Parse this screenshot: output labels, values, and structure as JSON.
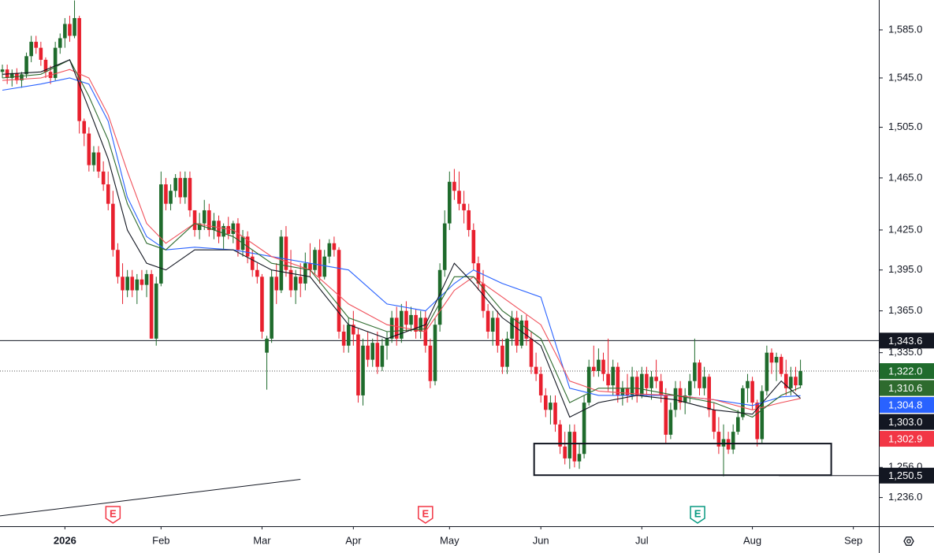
{
  "chart_data": {
    "type": "candlestick",
    "up_color": "#1f6b2c",
    "down_color": "#e8202e",
    "xlim": [
      -0.5,
      182.3
    ],
    "xticks": [
      {
        "value": 13,
        "label": "2026"
      },
      {
        "value": 33,
        "label": "Feb"
      },
      {
        "value": 54,
        "label": "Mar"
      },
      {
        "value": 73,
        "label": "Apr"
      },
      {
        "value": 93,
        "label": "May"
      },
      {
        "value": 112,
        "label": "Jun"
      },
      {
        "value": 133,
        "label": "Jul"
      },
      {
        "value": 156,
        "label": "Aug"
      },
      {
        "value": 177,
        "label": "Sep"
      }
    ],
    "log_scale": true,
    "grid": false,
    "ylim": [
      1217.3,
      1610.4
    ],
    "yticks": [
      {
        "value": 1236,
        "label": "1,236.0"
      },
      {
        "value": 1256,
        "label": "1,256.0"
      },
      {
        "value": 1335,
        "label": "1,335.0"
      },
      {
        "value": 1365,
        "label": "1,365.0"
      },
      {
        "value": 1395,
        "label": "1,395.0"
      },
      {
        "value": 1425,
        "label": "1,425.0"
      },
      {
        "value": 1465,
        "label": "1,465.0"
      },
      {
        "value": 1505,
        "label": "1,505.0"
      },
      {
        "value": 1545,
        "label": "1,545.0"
      },
      {
        "value": 1585,
        "label": "1,585.0"
      }
    ],
    "ohlc": [
      [
        1550,
        1556,
        1545,
        1552
      ],
      [
        1552,
        1556,
        1540,
        1545
      ],
      [
        1545,
        1552,
        1538,
        1549
      ],
      [
        1549,
        1553,
        1540,
        1543
      ],
      [
        1543,
        1550,
        1537,
        1548
      ],
      [
        1548,
        1566,
        1545,
        1563
      ],
      [
        1563,
        1580,
        1558,
        1575
      ],
      [
        1575,
        1580,
        1565,
        1570
      ],
      [
        1570,
        1575,
        1555,
        1560
      ],
      [
        1560,
        1562,
        1545,
        1550
      ],
      [
        1550,
        1555,
        1540,
        1545
      ],
      [
        1545,
        1575,
        1543,
        1570
      ],
      [
        1570,
        1582,
        1565,
        1578
      ],
      [
        1578,
        1595,
        1570,
        1590
      ],
      [
        1590,
        1597,
        1575,
        1580
      ],
      [
        1580,
        1610,
        1578,
        1595
      ],
      [
        1595,
        1597,
        1500,
        1510
      ],
      [
        1510,
        1512,
        1490,
        1500
      ],
      [
        1500,
        1505,
        1470,
        1475
      ],
      [
        1475,
        1490,
        1470,
        1485
      ],
      [
        1485,
        1490,
        1465,
        1470
      ],
      [
        1470,
        1478,
        1455,
        1460
      ],
      [
        1460,
        1470,
        1440,
        1445
      ],
      [
        1445,
        1455,
        1405,
        1410
      ],
      [
        1410,
        1415,
        1385,
        1390
      ],
      [
        1390,
        1400,
        1370,
        1380
      ],
      [
        1380,
        1395,
        1375,
        1390
      ],
      [
        1390,
        1395,
        1375,
        1380
      ],
      [
        1380,
        1392,
        1370,
        1388
      ],
      [
        1388,
        1395,
        1380,
        1384
      ],
      [
        1384,
        1395,
        1375,
        1392
      ],
      [
        1392,
        1395,
        1345,
        1345
      ],
      [
        1345,
        1390,
        1340,
        1385
      ],
      [
        1385,
        1470,
        1383,
        1460
      ],
      [
        1460,
        1465,
        1440,
        1445
      ],
      [
        1445,
        1460,
        1440,
        1455
      ],
      [
        1455,
        1468,
        1450,
        1465
      ],
      [
        1465,
        1470,
        1445,
        1450
      ],
      [
        1450,
        1470,
        1445,
        1465
      ],
      [
        1465,
        1470,
        1435,
        1440
      ],
      [
        1440,
        1440,
        1420,
        1425
      ],
      [
        1425,
        1438,
        1418,
        1430
      ],
      [
        1430,
        1448,
        1425,
        1440
      ],
      [
        1440,
        1445,
        1420,
        1425
      ],
      [
        1425,
        1438,
        1418,
        1432
      ],
      [
        1432,
        1436,
        1415,
        1420
      ],
      [
        1420,
        1430,
        1410,
        1428
      ],
      [
        1428,
        1435,
        1418,
        1422
      ],
      [
        1422,
        1432,
        1415,
        1430
      ],
      [
        1430,
        1434,
        1405,
        1410
      ],
      [
        1410,
        1425,
        1405,
        1420
      ],
      [
        1420,
        1424,
        1400,
        1405
      ],
      [
        1405,
        1410,
        1390,
        1395
      ],
      [
        1395,
        1400,
        1385,
        1390
      ],
      [
        1390,
        1392,
        1345,
        1350
      ],
      [
        1335,
        1347,
        1309,
        1345
      ],
      [
        1345,
        1395,
        1342,
        1390
      ],
      [
        1390,
        1400,
        1370,
        1380
      ],
      [
        1380,
        1425,
        1378,
        1420
      ],
      [
        1420,
        1428,
        1390,
        1395
      ],
      [
        1395,
        1410,
        1375,
        1380
      ],
      [
        1380,
        1395,
        1370,
        1390
      ],
      [
        1390,
        1400,
        1375,
        1385
      ],
      [
        1385,
        1408,
        1380,
        1400
      ],
      [
        1400,
        1415,
        1390,
        1395
      ],
      [
        1395,
        1412,
        1392,
        1410
      ],
      [
        1410,
        1418,
        1385,
        1390
      ],
      [
        1390,
        1410,
        1388,
        1405
      ],
      [
        1405,
        1418,
        1400,
        1415
      ],
      [
        1415,
        1420,
        1405,
        1410
      ],
      [
        1410,
        1412,
        1345,
        1350
      ],
      [
        1350,
        1355,
        1335,
        1340
      ],
      [
        1340,
        1360,
        1335,
        1355
      ],
      [
        1355,
        1365,
        1340,
        1348
      ],
      [
        1348,
        1352,
        1300,
        1305
      ],
      [
        1305,
        1345,
        1298,
        1340
      ],
      [
        1340,
        1350,
        1325,
        1330
      ],
      [
        1330,
        1345,
        1325,
        1342
      ],
      [
        1342,
        1350,
        1320,
        1325
      ],
      [
        1325,
        1345,
        1322,
        1340
      ],
      [
        1340,
        1350,
        1330,
        1345
      ],
      [
        1345,
        1365,
        1342,
        1360
      ],
      [
        1360,
        1368,
        1340,
        1345
      ],
      [
        1345,
        1370,
        1342,
        1365
      ],
      [
        1365,
        1372,
        1350,
        1355
      ],
      [
        1355,
        1368,
        1350,
        1362
      ],
      [
        1362,
        1366,
        1345,
        1350
      ],
      [
        1350,
        1365,
        1345,
        1360
      ],
      [
        1360,
        1365,
        1335,
        1340
      ],
      [
        1340,
        1345,
        1310,
        1315
      ],
      [
        1315,
        1360,
        1312,
        1355
      ],
      [
        1355,
        1400,
        1350,
        1395
      ],
      [
        1395,
        1440,
        1390,
        1430
      ],
      [
        1430,
        1470,
        1425,
        1462
      ],
      [
        1462,
        1472,
        1448,
        1455
      ],
      [
        1455,
        1470,
        1440,
        1445
      ],
      [
        1445,
        1455,
        1430,
        1440
      ],
      [
        1440,
        1445,
        1420,
        1425
      ],
      [
        1425,
        1430,
        1395,
        1400
      ],
      [
        1400,
        1405,
        1380,
        1385
      ],
      [
        1385,
        1395,
        1360,
        1365
      ],
      [
        1365,
        1370,
        1345,
        1350
      ],
      [
        1350,
        1365,
        1340,
        1360
      ],
      [
        1360,
        1365,
        1335,
        1340
      ],
      [
        1340,
        1345,
        1320,
        1325
      ],
      [
        1325,
        1350,
        1320,
        1345
      ],
      [
        1345,
        1365,
        1340,
        1360
      ],
      [
        1360,
        1365,
        1335,
        1340
      ],
      [
        1340,
        1362,
        1338,
        1358
      ],
      [
        1358,
        1362,
        1340,
        1345
      ],
      [
        1345,
        1350,
        1320,
        1325
      ],
      [
        1325,
        1335,
        1315,
        1320
      ],
      [
        1320,
        1325,
        1300,
        1305
      ],
      [
        1305,
        1310,
        1290,
        1295
      ],
      [
        1295,
        1305,
        1285,
        1300
      ],
      [
        1300,
        1305,
        1280,
        1285
      ],
      [
        1285,
        1288,
        1265,
        1270
      ],
      [
        1270,
        1280,
        1258,
        1262
      ],
      [
        1262,
        1285,
        1255,
        1280
      ],
      [
        1280,
        1285,
        1256,
        1260
      ],
      [
        1260,
        1272,
        1255,
        1265
      ],
      [
        1265,
        1305,
        1262,
        1300
      ],
      [
        1300,
        1330,
        1298,
        1325
      ],
      [
        1325,
        1340,
        1318,
        1322
      ],
      [
        1322,
        1338,
        1318,
        1330
      ],
      [
        1330,
        1335,
        1315,
        1320
      ],
      [
        1320,
        1345,
        1308,
        1312
      ],
      [
        1312,
        1330,
        1305,
        1325
      ],
      [
        1325,
        1328,
        1300,
        1305
      ],
      [
        1305,
        1315,
        1298,
        1310
      ],
      [
        1310,
        1320,
        1300,
        1305
      ],
      [
        1305,
        1325,
        1302,
        1318
      ],
      [
        1318,
        1322,
        1300,
        1305
      ],
      [
        1305,
        1325,
        1303,
        1320
      ],
      [
        1320,
        1325,
        1305,
        1310
      ],
      [
        1310,
        1322,
        1302,
        1318
      ],
      [
        1318,
        1330,
        1310,
        1315
      ],
      [
        1315,
        1320,
        1300,
        1305
      ],
      [
        1305,
        1310,
        1272,
        1278
      ],
      [
        1278,
        1300,
        1275,
        1295
      ],
      [
        1295,
        1315,
        1290,
        1310
      ],
      [
        1310,
        1315,
        1295,
        1300
      ],
      [
        1300,
        1310,
        1292,
        1305
      ],
      [
        1305,
        1320,
        1300,
        1315
      ],
      [
        1315,
        1345,
        1310,
        1328
      ],
      [
        1328,
        1330,
        1305,
        1310
      ],
      [
        1310,
        1325,
        1305,
        1318
      ],
      [
        1318,
        1320,
        1290,
        1295
      ],
      [
        1295,
        1300,
        1275,
        1280
      ],
      [
        1280,
        1290,
        1265,
        1270
      ],
      [
        1270,
        1285,
        1250,
        1275
      ],
      [
        1275,
        1280,
        1265,
        1268
      ],
      [
        1268,
        1285,
        1265,
        1280
      ],
      [
        1280,
        1295,
        1278,
        1290
      ],
      [
        1290,
        1312,
        1288,
        1310
      ],
      [
        1310,
        1320,
        1300,
        1315
      ],
      [
        1315,
        1318,
        1295,
        1300
      ],
      [
        1300,
        1302,
        1270,
        1275
      ],
      [
        1275,
        1312,
        1272,
        1308
      ],
      [
        1308,
        1340,
        1305,
        1335
      ],
      [
        1335,
        1338,
        1320,
        1328
      ],
      [
        1328,
        1335,
        1315,
        1332
      ],
      [
        1332,
        1334,
        1318,
        1320
      ],
      [
        1320,
        1330,
        1305,
        1310
      ],
      [
        1310,
        1325,
        1305,
        1318
      ],
      [
        1318,
        1325,
        1308,
        1312
      ],
      [
        1312,
        1330,
        1310,
        1322
      ]
    ],
    "lines": [
      {
        "color": "#2962ff",
        "x": [
          0,
          8,
          14,
          18,
          22,
          26,
          30,
          34,
          40,
          48,
          56,
          64,
          72,
          80,
          88,
          94,
          98,
          104,
          112,
          118,
          124,
          132,
          140,
          148,
          156,
          162,
          166
        ],
        "values": [
          1535,
          1540,
          1545,
          1540,
          1510,
          1450,
          1420,
          1410,
          1412,
          1410,
          1405,
          1400,
          1395,
          1370,
          1365,
          1385,
          1395,
          1385,
          1375,
          1310,
          1305,
          1305,
          1305,
          1302,
          1298,
          1304,
          1304.8
        ]
      },
      {
        "color": "#f0505a",
        "x": [
          0,
          8,
          14,
          18,
          22,
          26,
          30,
          34,
          40,
          48,
          56,
          64,
          72,
          80,
          88,
          94,
          98,
          104,
          112,
          118,
          124,
          132,
          140,
          148,
          156,
          162,
          166
        ],
        "values": [
          1543,
          1545,
          1552,
          1545,
          1515,
          1470,
          1430,
          1415,
          1430,
          1425,
          1405,
          1395,
          1370,
          1355,
          1350,
          1380,
          1390,
          1375,
          1355,
          1315,
          1308,
          1306,
          1305,
          1302,
          1295,
          1300,
          1302.9
        ]
      },
      {
        "color": "#2e6b2e",
        "x": [
          0,
          8,
          14,
          18,
          22,
          26,
          30,
          34,
          40,
          48,
          56,
          64,
          72,
          80,
          88,
          94,
          98,
          104,
          112,
          118,
          124,
          132,
          140,
          148,
          156,
          162,
          166
        ],
        "values": [
          1545,
          1548,
          1560,
          1530,
          1495,
          1445,
          1415,
          1410,
          1430,
          1420,
          1400,
          1395,
          1360,
          1350,
          1352,
          1390,
          1390,
          1365,
          1345,
          1300,
          1310,
          1310,
          1305,
          1300,
          1290,
          1305,
          1310.6
        ]
      },
      {
        "color": "#131722",
        "x": [
          0,
          8,
          14,
          18,
          22,
          26,
          30,
          34,
          40,
          48,
          56,
          64,
          72,
          80,
          88,
          94,
          98,
          104,
          112,
          118,
          124,
          132,
          140,
          148,
          156,
          162,
          166
        ],
        "values": [
          1548,
          1550,
          1560,
          1520,
          1480,
          1425,
          1400,
          1395,
          1410,
          1410,
          1395,
          1390,
          1355,
          1345,
          1355,
          1400,
          1385,
          1360,
          1340,
          1290,
          1300,
          1305,
          1302,
          1295,
          1292,
          1315,
          1303
        ]
      }
    ],
    "price_labels": [
      {
        "value": 1343.6,
        "label": "1,343.6",
        "color": "#131722",
        "line": "solid",
        "from": -0.5
      },
      {
        "value": 1322.0,
        "label": "1,322.0",
        "color": "#1f6b2c",
        "line": "dotted",
        "from": -0.5
      },
      {
        "value": 1310.6,
        "label": "1,310.6",
        "color": "#2e6b2e"
      },
      {
        "value": 1304.8,
        "label": "1,304.8",
        "color": "#2962ff"
      },
      {
        "value": 1303.0,
        "label": "1,303.0",
        "color": "#131722"
      },
      {
        "value": 1302.9,
        "label": "1,302.9",
        "color": "#f23645"
      },
      {
        "value": 1250.5,
        "label": "1,250.5",
        "color": "#131722",
        "line": "solid",
        "from": 161.5
      }
    ],
    "box": {
      "x": [
        110.6,
        172.4
      ],
      "y": [
        1250.8,
        1272
      ]
    },
    "trendline": {
      "x": [
        -0.5,
        62
      ],
      "y": [
        1224,
        1248
      ]
    },
    "events": [
      {
        "index": 23,
        "label": "E",
        "color": "#f23645"
      },
      {
        "index": 88,
        "label": "E",
        "color": "#f23645"
      },
      {
        "index": 144.6,
        "label": "E",
        "color": "#089981"
      }
    ]
  }
}
